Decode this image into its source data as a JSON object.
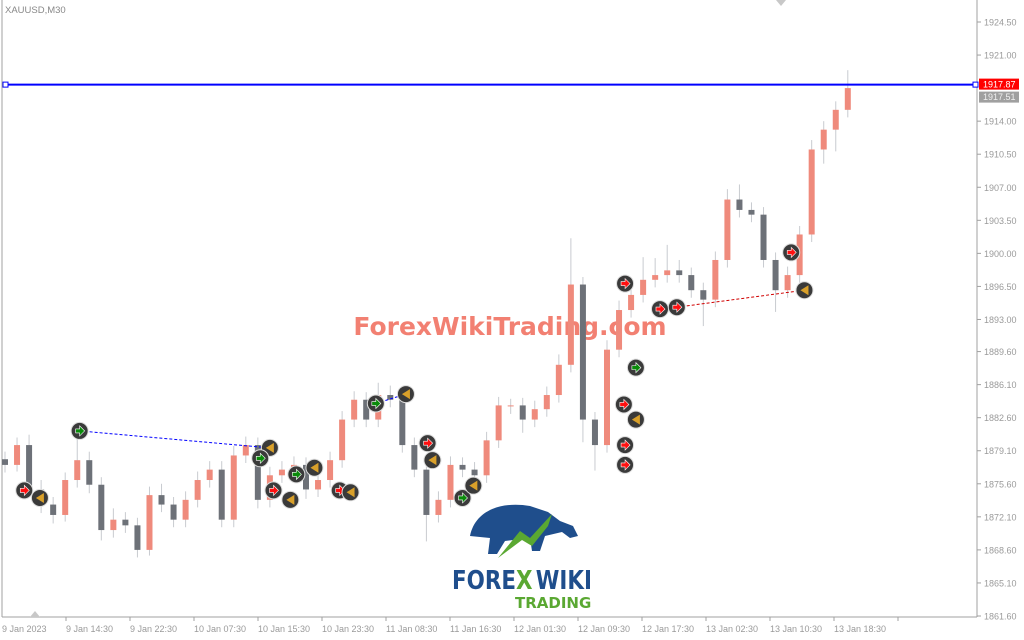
{
  "chart_data": {
    "type": "candlestick",
    "symbol_label": "XAUUSD,M30",
    "ylim": [
      1861.6,
      1924.5
    ],
    "y_ticks": [
      "1924.50",
      "1921.00",
      "1914.00",
      "1910.50",
      "1907.00",
      "1903.50",
      "1900.00",
      "1896.50",
      "1893.00",
      "1889.60",
      "1886.10",
      "1882.60",
      "1879.10",
      "1875.60",
      "1872.10",
      "1868.60",
      "1865.10",
      "1861.60"
    ],
    "x_ticks": [
      "9 Jan 2023",
      "9 Jan 14:30",
      "9 Jan 22:30",
      "10 Jan 07:30",
      "10 Jan 15:30",
      "10 Jan 23:30",
      "11 Jan 08:30",
      "11 Jan 16:30",
      "12 Jan 01:30",
      "12 Jan 09:30",
      "12 Jan 17:30",
      "13 Jan 02:30",
      "13 Jan 10:30",
      "13 Jan 18:30"
    ],
    "grid": false,
    "colors": {
      "bull": "#ef8a7c",
      "bear": "#6d7178",
      "wick": "#c8cbd0",
      "price_line": "#0000ff",
      "bid_label": "#ff0000",
      "ask_label": "#a0a0a0",
      "buy_arrow": "#0a8a0a",
      "sell_arrow": "#ff1010",
      "close_marker": "#d9a02a",
      "marker_bg": "#3a3a3a"
    },
    "price_line": {
      "value": 1917.87,
      "label": "1917.87"
    },
    "second_price_label": "1917.51",
    "ohlc": [
      [
        1878.2,
        1879.0,
        1876.8,
        1877.6
      ],
      [
        1877.6,
        1880.5,
        1876.9,
        1879.7
      ],
      [
        1879.7,
        1880.8,
        1874.2,
        1875.0
      ],
      [
        1875.0,
        1876.0,
        1872.5,
        1873.4
      ],
      [
        1873.4,
        1874.2,
        1871.4,
        1872.3
      ],
      [
        1872.3,
        1876.8,
        1871.6,
        1876.0
      ],
      [
        1876.0,
        1880.5,
        1875.2,
        1878.1
      ],
      [
        1878.1,
        1879.0,
        1874.6,
        1875.5
      ],
      [
        1875.5,
        1876.3,
        1869.6,
        1870.7
      ],
      [
        1870.7,
        1873.0,
        1869.9,
        1871.8
      ],
      [
        1871.8,
        1872.6,
        1870.4,
        1871.2
      ],
      [
        1871.2,
        1872.0,
        1867.8,
        1868.6
      ],
      [
        1868.6,
        1875.3,
        1868.0,
        1874.4
      ],
      [
        1874.4,
        1875.6,
        1872.6,
        1873.4
      ],
      [
        1873.4,
        1874.2,
        1871.0,
        1871.8
      ],
      [
        1871.8,
        1874.8,
        1871.0,
        1873.9
      ],
      [
        1873.9,
        1876.9,
        1873.1,
        1876.0
      ],
      [
        1876.0,
        1878.0,
        1875.2,
        1877.1
      ],
      [
        1877.1,
        1878.0,
        1871.0,
        1871.8
      ],
      [
        1871.8,
        1879.6,
        1871.0,
        1878.6
      ],
      [
        1878.6,
        1880.6,
        1877.8,
        1879.7
      ],
      [
        1879.7,
        1880.5,
        1873.0,
        1873.9
      ],
      [
        1873.9,
        1877.4,
        1873.1,
        1876.5
      ],
      [
        1876.5,
        1878.0,
        1875.7,
        1877.1
      ],
      [
        1877.1,
        1878.5,
        1876.3,
        1877.6
      ],
      [
        1877.6,
        1878.4,
        1874.0,
        1875.0
      ],
      [
        1875.0,
        1876.9,
        1874.2,
        1876.0
      ],
      [
        1876.0,
        1879.0,
        1875.2,
        1878.1
      ],
      [
        1878.1,
        1883.3,
        1877.3,
        1882.4
      ],
      [
        1882.4,
        1885.4,
        1881.6,
        1884.5
      ],
      [
        1884.5,
        1885.3,
        1881.6,
        1882.4
      ],
      [
        1882.4,
        1886.3,
        1881.6,
        1885.0
      ],
      [
        1885.0,
        1886.0,
        1883.7,
        1884.5
      ],
      [
        1884.5,
        1885.3,
        1878.9,
        1879.7
      ],
      [
        1879.7,
        1880.5,
        1876.3,
        1877.1
      ],
      [
        1877.1,
        1877.9,
        1869.5,
        1872.3
      ],
      [
        1872.3,
        1874.8,
        1871.5,
        1873.9
      ],
      [
        1873.9,
        1878.5,
        1873.1,
        1877.6
      ],
      [
        1877.6,
        1878.4,
        1876.3,
        1877.1
      ],
      [
        1877.1,
        1877.9,
        1875.3,
        1876.5
      ],
      [
        1876.5,
        1881.1,
        1875.7,
        1880.2
      ],
      [
        1880.2,
        1884.8,
        1879.4,
        1883.9
      ],
      [
        1883.9,
        1884.6,
        1883.0,
        1883.9
      ],
      [
        1883.9,
        1884.7,
        1881.0,
        1882.4
      ],
      [
        1882.4,
        1884.4,
        1881.6,
        1883.5
      ],
      [
        1883.5,
        1885.9,
        1882.7,
        1885.0
      ],
      [
        1885.0,
        1889.3,
        1884.2,
        1888.2
      ],
      [
        1888.2,
        1901.6,
        1887.4,
        1896.7
      ],
      [
        1896.7,
        1897.5,
        1880.0,
        1882.4
      ],
      [
        1882.4,
        1883.2,
        1877.0,
        1879.7
      ],
      [
        1879.7,
        1890.8,
        1878.9,
        1889.8
      ],
      [
        1889.8,
        1895.0,
        1889.0,
        1894.0
      ],
      [
        1894.0,
        1897.4,
        1893.2,
        1895.6
      ],
      [
        1895.6,
        1899.6,
        1894.8,
        1897.2
      ],
      [
        1897.2,
        1899.5,
        1896.4,
        1897.7
      ],
      [
        1897.7,
        1900.9,
        1896.9,
        1898.2
      ],
      [
        1898.2,
        1899.3,
        1896.9,
        1897.7
      ],
      [
        1897.7,
        1898.5,
        1895.3,
        1896.1
      ],
      [
        1896.1,
        1896.9,
        1892.3,
        1895.1
      ],
      [
        1895.1,
        1900.2,
        1894.3,
        1899.3
      ],
      [
        1899.3,
        1906.8,
        1898.5,
        1905.7
      ],
      [
        1905.7,
        1907.3,
        1903.8,
        1904.6
      ],
      [
        1904.6,
        1905.4,
        1903.3,
        1904.1
      ],
      [
        1904.1,
        1904.9,
        1898.5,
        1899.3
      ],
      [
        1899.3,
        1900.1,
        1893.8,
        1896.1
      ],
      [
        1896.1,
        1898.6,
        1895.3,
        1897.7
      ],
      [
        1897.7,
        1902.9,
        1896.9,
        1902.0
      ],
      [
        1902.0,
        1912.0,
        1901.2,
        1911.0
      ],
      [
        1911.0,
        1914.0,
        1909.5,
        1913.1
      ],
      [
        1913.1,
        1916.1,
        1910.8,
        1915.2
      ],
      [
        1915.2,
        1919.4,
        1914.4,
        1917.5
      ]
    ],
    "trade_markers": [
      {
        "bar": 1.6,
        "price": 1874.9,
        "kind": "sell"
      },
      {
        "bar": 2.9,
        "price": 1874.1,
        "kind": "close"
      },
      {
        "bar": 6.2,
        "price": 1881.2,
        "kind": "buy"
      },
      {
        "bar": 22.0,
        "price": 1879.4,
        "kind": "close"
      },
      {
        "bar": 21.2,
        "price": 1878.3,
        "kind": "buy"
      },
      {
        "bar": 22.3,
        "price": 1874.9,
        "kind": "sell"
      },
      {
        "bar": 23.7,
        "price": 1873.9,
        "kind": "close"
      },
      {
        "bar": 24.2,
        "price": 1876.6,
        "kind": "buy"
      },
      {
        "bar": 25.7,
        "price": 1877.3,
        "kind": "close"
      },
      {
        "bar": 27.8,
        "price": 1874.9,
        "kind": "sell"
      },
      {
        "bar": 28.7,
        "price": 1874.7,
        "kind": "close"
      },
      {
        "bar": 30.8,
        "price": 1884.1,
        "kind": "buy"
      },
      {
        "bar": 33.3,
        "price": 1885.1,
        "kind": "close"
      },
      {
        "bar": 35.1,
        "price": 1879.9,
        "kind": "sell"
      },
      {
        "bar": 35.5,
        "price": 1878.1,
        "kind": "close"
      },
      {
        "bar": 38.0,
        "price": 1874.1,
        "kind": "buy"
      },
      {
        "bar": 38.9,
        "price": 1875.4,
        "kind": "close"
      },
      {
        "bar": 51.5,
        "price": 1896.8,
        "kind": "sell"
      },
      {
        "bar": 52.4,
        "price": 1887.9,
        "kind": "buy"
      },
      {
        "bar": 51.4,
        "price": 1884.0,
        "kind": "sell"
      },
      {
        "bar": 51.5,
        "price": 1879.7,
        "kind": "sell"
      },
      {
        "bar": 51.5,
        "price": 1877.6,
        "kind": "sell"
      },
      {
        "bar": 52.4,
        "price": 1882.4,
        "kind": "close"
      },
      {
        "bar": 54.4,
        "price": 1894.1,
        "kind": "sell"
      },
      {
        "bar": 55.8,
        "price": 1894.3,
        "kind": "sell"
      },
      {
        "bar": 65.3,
        "price": 1900.1,
        "kind": "sell"
      },
      {
        "bar": 66.4,
        "price": 1896.1,
        "kind": "close"
      }
    ],
    "trade_links": [
      {
        "from": 2,
        "to": 3,
        "color": "#0000ff"
      },
      {
        "from": 11,
        "to": 12,
        "color": "#0000ff"
      },
      {
        "from": 24,
        "to": 26,
        "color": "#d00000"
      }
    ]
  },
  "watermark": "ForexWikiTrading.com",
  "logo": {
    "line1a": "FORE",
    "line1b": "X",
    "line1c": "WIKI",
    "line2": "TRADING",
    "colors": {
      "blue": "#1f4e8c",
      "green": "#5aa832"
    }
  }
}
